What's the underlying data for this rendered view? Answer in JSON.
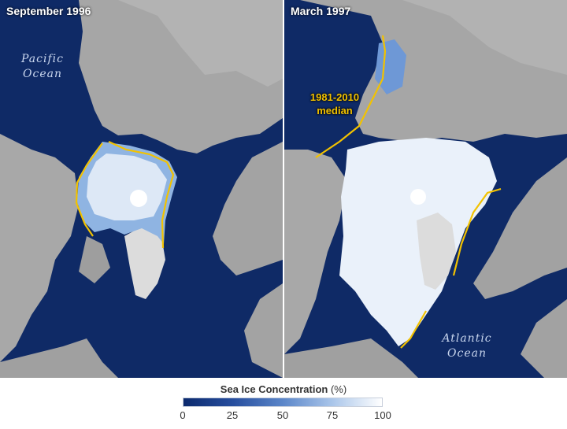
{
  "panels": [
    {
      "title": "September 1996",
      "ocean_label": [
        "Pacific",
        "Ocean"
      ]
    },
    {
      "title": "March 1997",
      "ocean_label": [
        "Atlantic",
        "Ocean"
      ],
      "median_label": [
        "1981-2010",
        "median"
      ]
    }
  ],
  "legend": {
    "title": "Sea Ice Concentration",
    "unit": "(%)",
    "ticks": [
      "0",
      "25",
      "50",
      "75",
      "100"
    ],
    "colors": [
      "#0c2a6e",
      "#274e9e",
      "#5b86c9",
      "#aac6ea",
      "#ffffff"
    ]
  },
  "colors": {
    "ocean": "#0f2a66",
    "land": "#a9a9a9",
    "sea_ice": "#ffffff",
    "median_line": "#f2c200"
  }
}
